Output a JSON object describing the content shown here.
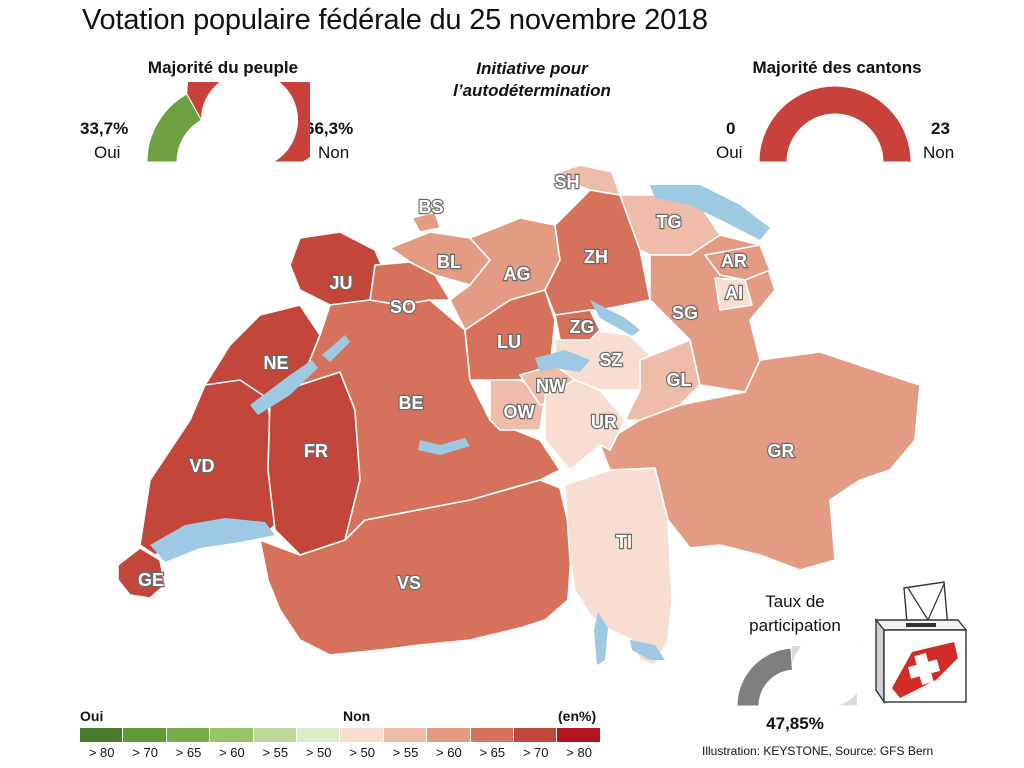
{
  "title": "Votation populaire fédérale du 25 novembre 2018",
  "subject": {
    "line1": "Initiative pour",
    "line2": "l’autodétermination"
  },
  "popular_majority": {
    "heading": "Majorité du peuple",
    "yes_pct": "33,7%",
    "yes_label": "Oui",
    "no_pct": "66,3%",
    "no_label": "Non",
    "yes_fraction": 0.337
  },
  "cantons_majority": {
    "heading": "Majorité des cantons",
    "yes_count": "0",
    "yes_label": "Oui",
    "no_count": "23",
    "no_label": "Non",
    "yes_fraction": 0
  },
  "turnout": {
    "heading_line1": "Taux de",
    "heading_line2": "participation",
    "value": "47,85%",
    "fraction": 0.4785
  },
  "legend": {
    "yes_label": "Oui",
    "no_label": "Non",
    "unit": "(en%)",
    "bins": [
      {
        "label": "> 80",
        "color": "#4a7a2c"
      },
      {
        "label": "> 70",
        "color": "#5f9a36"
      },
      {
        "label": "> 65",
        "color": "#76ad46"
      },
      {
        "label": "> 60",
        "color": "#98c468"
      },
      {
        "label": "> 55",
        "color": "#bcd99a"
      },
      {
        "label": "> 50",
        "color": "#dcecc8"
      },
      {
        "label": "> 50",
        "color": "#f7ddd2"
      },
      {
        "label": "> 55",
        "color": "#efbcaa"
      },
      {
        "label": "> 60",
        "color": "#e39b84"
      },
      {
        "label": "> 65",
        "color": "#d6725b"
      },
      {
        "label": "> 70",
        "color": "#c2463a"
      },
      {
        "label": "> 80",
        "color": "#b3131f"
      }
    ]
  },
  "colors": {
    "yes": "#6ca040",
    "no": "#c8413a",
    "turnout": "#7f7f7f",
    "turnout_rest": "#d9d9d9",
    "lake": "#9ec9e2",
    "border": "#ffffff"
  },
  "cantons": [
    {
      "code": "SH",
      "no_bin": "> 55"
    },
    {
      "code": "BS",
      "no_bin": "> 60"
    },
    {
      "code": "TG",
      "no_bin": "> 55"
    },
    {
      "code": "BL",
      "no_bin": "> 60"
    },
    {
      "code": "AG",
      "no_bin": "> 60"
    },
    {
      "code": "ZH",
      "no_bin": "> 65"
    },
    {
      "code": "AR",
      "no_bin": "> 60"
    },
    {
      "code": "AI",
      "no_bin": "> 50"
    },
    {
      "code": "JU",
      "no_bin": "> 70"
    },
    {
      "code": "SO",
      "no_bin": "> 65"
    },
    {
      "code": "SG",
      "no_bin": "> 60"
    },
    {
      "code": "ZG",
      "no_bin": "> 65"
    },
    {
      "code": "LU",
      "no_bin": "> 65"
    },
    {
      "code": "NE",
      "no_bin": "> 70"
    },
    {
      "code": "SZ",
      "no_bin": "> 50"
    },
    {
      "code": "NW",
      "no_bin": "> 55"
    },
    {
      "code": "GL",
      "no_bin": "> 55"
    },
    {
      "code": "BE",
      "no_bin": "> 65"
    },
    {
      "code": "OW",
      "no_bin": "> 55"
    },
    {
      "code": "UR",
      "no_bin": "> 50"
    },
    {
      "code": "FR",
      "no_bin": "> 70"
    },
    {
      "code": "VD",
      "no_bin": "> 70"
    },
    {
      "code": "GR",
      "no_bin": "> 60"
    },
    {
      "code": "TI",
      "no_bin": "> 50"
    },
    {
      "code": "GE",
      "no_bin": "> 70"
    },
    {
      "code": "VS",
      "no_bin": "> 65"
    }
  ],
  "credit": "Illustration: KEYSTONE, Source: GFS Bern"
}
